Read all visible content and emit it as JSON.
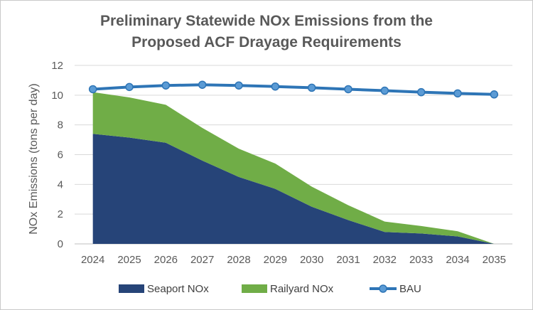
{
  "chart_data": {
    "type": "area",
    "title_lines": [
      "Preliminary Statewide NOx Emissions from the",
      "Proposed ACF Drayage Requirements"
    ],
    "ylabel": "NOx Emissions (tons per day)",
    "xlabel": "",
    "ylim": [
      0,
      12
    ],
    "yticks": [
      0,
      2,
      4,
      6,
      8,
      10,
      12
    ],
    "grid": true,
    "legend_position": "bottom",
    "categories": [
      "2024",
      "2025",
      "2026",
      "2027",
      "2028",
      "2029",
      "2030",
      "2031",
      "2032",
      "2033",
      "2034",
      "2035"
    ],
    "series": [
      {
        "name": "Seaport NOx",
        "type": "stacked-area",
        "color": "#264478",
        "values": [
          7.4,
          7.15,
          6.8,
          5.6,
          4.5,
          3.7,
          2.5,
          1.6,
          0.8,
          0.7,
          0.5,
          0.0
        ]
      },
      {
        "name": "Railyard NOx",
        "type": "stacked-area",
        "color": "#70ad47",
        "values": [
          2.8,
          2.7,
          2.55,
          2.2,
          1.9,
          1.7,
          1.35,
          1.0,
          0.7,
          0.5,
          0.35,
          0.0
        ]
      },
      {
        "name": "BAU",
        "type": "line",
        "color": "#2e75b6",
        "marker_fill": "#5b9bd5",
        "values": [
          10.4,
          10.55,
          10.65,
          10.7,
          10.65,
          10.58,
          10.5,
          10.4,
          10.3,
          10.2,
          10.12,
          10.05
        ]
      }
    ]
  }
}
